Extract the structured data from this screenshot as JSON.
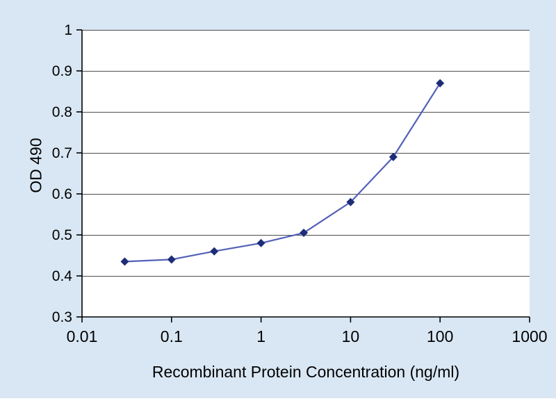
{
  "chart_data": {
    "type": "line",
    "title": "",
    "xlabel": "Recombinant Protein Concentration (ng/ml)",
    "ylabel": "OD 490",
    "x_scale": "log",
    "xlim": [
      0.01,
      1000
    ],
    "ylim": [
      0.3,
      1
    ],
    "grid": "horizontal",
    "legend": "none",
    "marker": "diamond",
    "x": [
      0.03,
      0.1,
      0.3,
      1,
      3,
      10,
      30,
      100
    ],
    "series": [
      {
        "name": "OD 490",
        "values": [
          0.435,
          0.44,
          0.46,
          0.48,
          0.505,
          0.58,
          0.69,
          0.87
        ]
      }
    ],
    "x_ticks": [
      {
        "value": 0.01,
        "label": "0.01"
      },
      {
        "value": 0.1,
        "label": "0.1"
      },
      {
        "value": 1,
        "label": "1"
      },
      {
        "value": 10,
        "label": "10"
      },
      {
        "value": 100,
        "label": "100"
      },
      {
        "value": 1000,
        "label": "1000"
      }
    ],
    "y_ticks": [
      {
        "value": 0.3,
        "label": "0.3"
      },
      {
        "value": 0.4,
        "label": "0.4"
      },
      {
        "value": 0.5,
        "label": "0.5"
      },
      {
        "value": 0.6,
        "label": "0.6"
      },
      {
        "value": 0.7,
        "label": "0.7"
      },
      {
        "value": 0.8,
        "label": "0.8"
      },
      {
        "value": 0.9,
        "label": "0.9"
      },
      {
        "value": 1,
        "label": "1"
      }
    ],
    "colors": {
      "background": "#d9e7f4",
      "plot_background": "#ffffff",
      "line": "#5361b8",
      "marker": "#1e2d78",
      "grid": "#4d4d4d",
      "axis": "#000000",
      "text": "#000000"
    }
  }
}
